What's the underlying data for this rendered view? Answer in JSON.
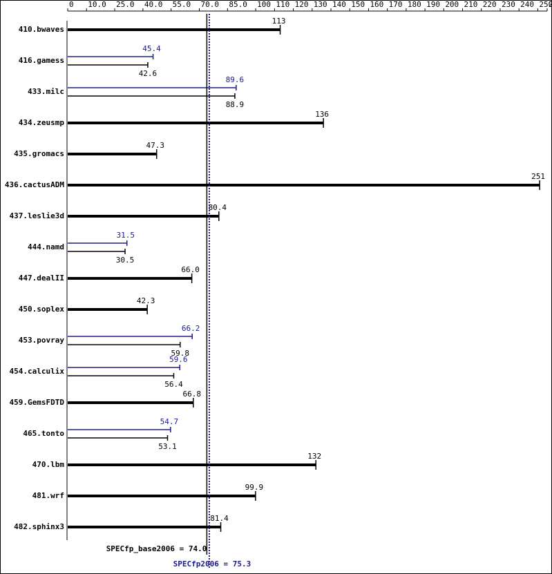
{
  "chart_data": {
    "type": "bar",
    "categories": [
      "410.bwaves",
      "416.gamess",
      "433.milc",
      "434.zeusmp",
      "435.gromacs",
      "436.cactusADM",
      "437.leslie3d",
      "444.namd",
      "447.dealII",
      "450.soplex",
      "453.povray",
      "454.calculix",
      "459.GemsFDTD",
      "465.tonto",
      "470.lbm",
      "481.wrf",
      "482.sphinx3"
    ],
    "series": [
      {
        "color": "#000000",
        "values": [
          113,
          42.6,
          88.9,
          136,
          47.3,
          251,
          80.4,
          30.5,
          66.0,
          42.3,
          59.8,
          56.4,
          66.8,
          53.1,
          132,
          99.9,
          81.4
        ],
        "value_labels": [
          "113",
          "42.6",
          "88.9",
          "136",
          "47.3",
          "251",
          "80.4",
          "30.5",
          "66.0",
          "42.3",
          "59.8",
          "56.4",
          "66.8",
          "53.1",
          "132",
          "99.9",
          "81.4"
        ]
      },
      {
        "color": "#1a1a8c",
        "values": [
          null,
          45.4,
          89.6,
          null,
          null,
          null,
          null,
          31.5,
          null,
          null,
          66.2,
          59.6,
          null,
          54.7,
          null,
          null,
          null
        ]
      }
    ],
    "xlim": [
      0,
      255
    ],
    "xticks": [
      0,
      {
        "value": 10,
        "label": "10.0"
      },
      {
        "value": 25,
        "label": "25.0"
      },
      {
        "value": 40,
        "label": "40.0"
      },
      {
        "value": 55,
        "label": "55.0"
      },
      {
        "value": 70,
        "label": "70.0"
      },
      {
        "value": 85,
        "label": "85.0"
      },
      100,
      110,
      120,
      130,
      140,
      150,
      160,
      170,
      180,
      190,
      200,
      210,
      220,
      230,
      240,
      250,
      255
    ],
    "reference_lines": [
      {
        "label": "SPECfp_base2006 = 74.0",
        "value": 74.0,
        "color": "#000000",
        "style": "solid"
      },
      {
        "label": "SPECfp2006 = 75.3",
        "value": 75.3,
        "color": "#1a1a8c",
        "style": "dotted"
      }
    ]
  }
}
